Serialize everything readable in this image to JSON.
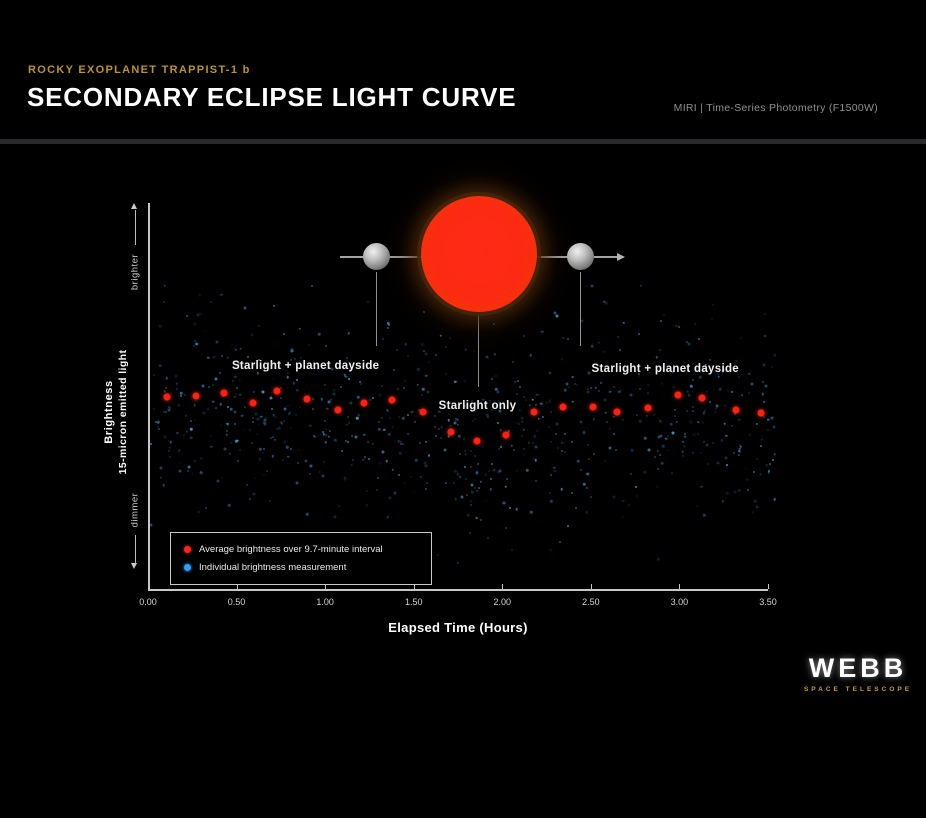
{
  "header": {
    "eyebrow": "ROCKY EXOPLANET TRAPPIST-1 b",
    "title": "SECONDARY ECLIPSE LIGHT CURVE",
    "instrument": "MIRI | Time-Series Photometry (F1500W)"
  },
  "colors": {
    "background": "#000000",
    "accent_gold": "#bf9426",
    "average_red": "#ff2318",
    "measurement_blue": "#2e9df5",
    "axis_gray": "#c8c8c8",
    "caption_gray": "#8f8f8f",
    "divider_gray": "#29292b",
    "star_red": "#ff2a12",
    "planet_gray": "#a9a9a9"
  },
  "chart_data": {
    "type": "scatter",
    "title": "Secondary Eclipse Light Curve",
    "xlabel": "Elapsed Time (Hours)",
    "ylabel": "Brightness",
    "ylabel_sub": "15-micron emitted light",
    "y_direction": {
      "top": "brighter",
      "bottom": "dimmer"
    },
    "xlim": [
      0,
      3.5
    ],
    "ylim": [
      0,
      1
    ],
    "x_ticks": [
      "0.00",
      "0.50",
      "1.00",
      "1.50",
      "2.00",
      "2.50",
      "3.00",
      "3.50"
    ],
    "grid": false,
    "legend_position": "lower left",
    "annotations": [
      {
        "text": "Starlight + planet dayside",
        "t": 0.89,
        "rel": 0.575
      },
      {
        "text": "Starlight only",
        "t": 1.86,
        "rel": 0.472
      },
      {
        "text": "Starlight + planet dayside",
        "t": 2.92,
        "rel": 0.567
      }
    ],
    "series": [
      {
        "name": "Average brightness over 9.7-minute interval",
        "color": "#ff2318",
        "marker": "circle",
        "points": [
          {
            "t": 0.11,
            "rel": 0.495
          },
          {
            "t": 0.27,
            "rel": 0.497
          },
          {
            "t": 0.43,
            "rel": 0.505
          },
          {
            "t": 0.59,
            "rel": 0.479
          },
          {
            "t": 0.73,
            "rel": 0.51
          },
          {
            "t": 0.9,
            "rel": 0.49
          },
          {
            "t": 1.07,
            "rel": 0.462
          },
          {
            "t": 1.22,
            "rel": 0.479
          },
          {
            "t": 1.38,
            "rel": 0.487
          },
          {
            "t": 1.55,
            "rel": 0.456
          },
          {
            "t": 1.71,
            "rel": 0.405
          },
          {
            "t": 1.86,
            "rel": 0.382
          },
          {
            "t": 2.02,
            "rel": 0.397
          },
          {
            "t": 2.18,
            "rel": 0.456
          },
          {
            "t": 2.34,
            "rel": 0.469
          },
          {
            "t": 2.51,
            "rel": 0.469
          },
          {
            "t": 2.65,
            "rel": 0.456
          },
          {
            "t": 2.82,
            "rel": 0.467
          },
          {
            "t": 2.99,
            "rel": 0.5
          },
          {
            "t": 3.13,
            "rel": 0.492
          },
          {
            "t": 3.32,
            "rel": 0.462
          },
          {
            "t": 3.46,
            "rel": 0.454
          }
        ]
      },
      {
        "name": "Individual brightness measurement",
        "color": "#2e9df5",
        "marker": "circle",
        "scatter_spec": {
          "count": 780,
          "seed": 12,
          "t_range": [
            0.0,
            3.54
          ],
          "rel_offset": -0.03,
          "rel_sigma": 0.135,
          "rel_clamp": [
            0.05,
            0.78
          ]
        }
      }
    ]
  },
  "diagram": {
    "description": "Red dwarf star with orbiting planet shown before and after passing behind the star; arrow indicates direction of motion"
  },
  "footer_logo": {
    "wordmark": "WEBB",
    "subtitle": "SPACE TELESCOPE"
  }
}
